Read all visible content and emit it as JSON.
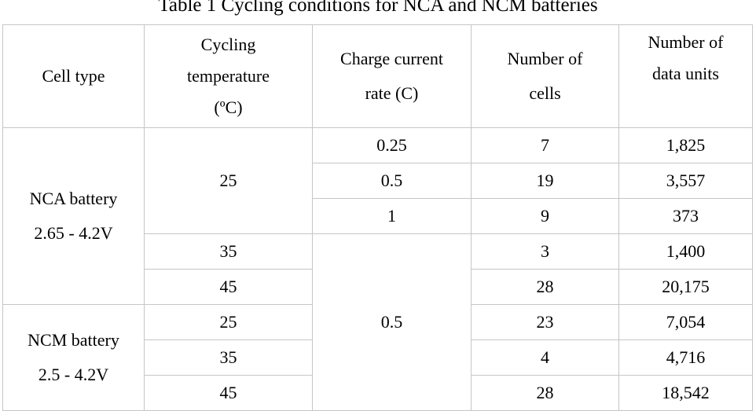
{
  "caption": "Table 1 Cycling conditions for NCA and NCM batteries",
  "headers": {
    "cell_type": "Cell type",
    "cycling_temp": [
      "Cycling",
      "temperature",
      "(ºC)"
    ],
    "charge_rate": [
      "Charge current",
      "rate (C)"
    ],
    "num_cells": [
      "Number of",
      "cells"
    ],
    "num_units": [
      "Number of",
      "data units"
    ]
  },
  "groups": {
    "nca": [
      "NCA battery",
      "2.65 - 4.2V"
    ],
    "ncm": [
      "NCM battery",
      "2.5 - 4.2V"
    ]
  },
  "temps": [
    "25",
    "35",
    "45",
    "25",
    "35",
    "45"
  ],
  "rates": [
    "0.25",
    "0.5",
    "1",
    "0.5"
  ],
  "rows": [
    {
      "cells": "7",
      "units": "1,825"
    },
    {
      "cells": "19",
      "units": "3,557"
    },
    {
      "cells": "9",
      "units": "373"
    },
    {
      "cells": "3",
      "units": "1,400"
    },
    {
      "cells": "28",
      "units": "20,175"
    },
    {
      "cells": "23",
      "units": "7,054"
    },
    {
      "cells": "4",
      "units": "4,716"
    },
    {
      "cells": "28",
      "units": "18,542"
    }
  ]
}
